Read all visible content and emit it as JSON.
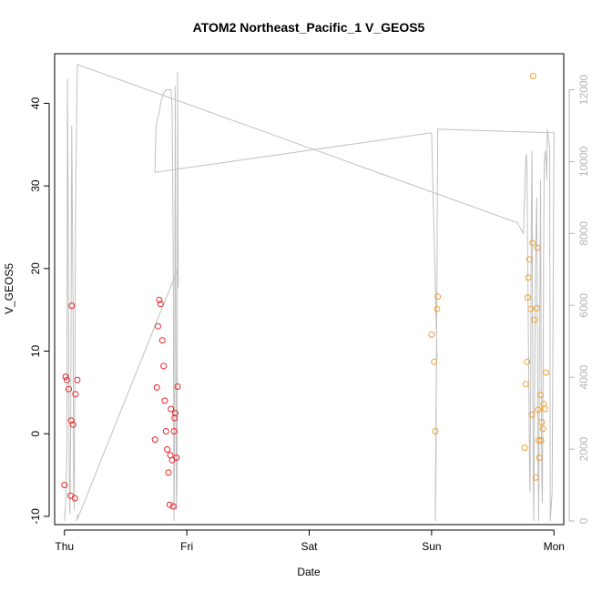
{
  "chart_data": {
    "type": "scatter",
    "title": "ATOM2 Northeast_Pacific_1 V_GEOS5",
    "xlabel": "Date",
    "ylabel": "V_GEOS5",
    "x_ticks": [
      "Thu",
      "Fri",
      "Sat",
      "Sun",
      "Mon"
    ],
    "y_left": {
      "ticks": [
        -10,
        0,
        10,
        20,
        30,
        40
      ],
      "range": [
        -11,
        46
      ]
    },
    "y_right": {
      "ticks": [
        0,
        2000,
        4000,
        6000,
        8000,
        10000,
        12000
      ],
      "range": [
        -100,
        13000
      ]
    },
    "x_range": [
      -0.08,
      4.08
    ],
    "colors": {
      "series1": "#e8242a",
      "series2": "#f0a030",
      "altitude": "#c0c0c0"
    },
    "series": [
      {
        "color_key": "series1",
        "points": [
          [
            0.0,
            -6.2
          ],
          [
            0.01,
            6.9
          ],
          [
            0.02,
            6.5
          ],
          [
            0.035,
            5.4
          ],
          [
            0.05,
            -7.5
          ],
          [
            0.055,
            1.6
          ],
          [
            0.06,
            15.5
          ],
          [
            0.07,
            1.1
          ],
          [
            0.085,
            -7.8
          ],
          [
            0.09,
            4.8
          ],
          [
            0.105,
            6.5
          ],
          [
            0.74,
            -0.7
          ],
          [
            0.755,
            5.6
          ],
          [
            0.765,
            13.0
          ],
          [
            0.775,
            16.2
          ],
          [
            0.785,
            15.7
          ],
          [
            0.8,
            11.3
          ],
          [
            0.81,
            8.2
          ],
          [
            0.82,
            4.0
          ],
          [
            0.83,
            0.3
          ],
          [
            0.84,
            -1.9
          ],
          [
            0.85,
            -4.7
          ],
          [
            0.86,
            -8.6
          ],
          [
            0.865,
            -2.6
          ],
          [
            0.87,
            3.0
          ],
          [
            0.88,
            -3.2
          ],
          [
            0.89,
            -8.8
          ],
          [
            0.895,
            0.3
          ],
          [
            0.9,
            1.9
          ],
          [
            0.905,
            2.5
          ],
          [
            0.915,
            -2.9
          ],
          [
            0.925,
            5.7
          ]
        ]
      },
      {
        "color_key": "series2",
        "points": [
          [
            3.0,
            12.0
          ],
          [
            3.02,
            8.7
          ],
          [
            3.03,
            0.3
          ],
          [
            3.045,
            15.1
          ],
          [
            3.05,
            16.6
          ],
          [
            3.76,
            -1.7
          ],
          [
            3.77,
            6.0
          ],
          [
            3.78,
            8.7
          ],
          [
            3.785,
            16.5
          ],
          [
            3.79,
            18.9
          ],
          [
            3.8,
            21.1
          ],
          [
            3.81,
            15.1
          ],
          [
            3.82,
            2.3
          ],
          [
            3.825,
            23.1
          ],
          [
            3.83,
            43.3
          ],
          [
            3.84,
            13.8
          ],
          [
            3.85,
            -5.3
          ],
          [
            3.86,
            15.2
          ],
          [
            3.865,
            22.5
          ],
          [
            3.87,
            2.9
          ],
          [
            3.875,
            -0.8
          ],
          [
            3.88,
            -2.9
          ],
          [
            3.89,
            4.7
          ],
          [
            3.895,
            -0.8
          ],
          [
            3.9,
            1.4
          ],
          [
            3.91,
            0.6
          ],
          [
            3.915,
            3.6
          ],
          [
            3.925,
            3.0
          ],
          [
            3.935,
            7.4
          ]
        ]
      }
    ],
    "altitude_line": [
      [
        0.0,
        0
      ],
      [
        0.01,
        500
      ],
      [
        0.02,
        2000
      ],
      [
        0.025,
        12300
      ],
      [
        0.03,
        9000
      ],
      [
        0.035,
        4000
      ],
      [
        0.04,
        1000
      ],
      [
        0.045,
        200
      ],
      [
        0.05,
        2000
      ],
      [
        0.06,
        11000
      ],
      [
        0.07,
        6000
      ],
      [
        0.075,
        1000
      ],
      [
        0.08,
        300
      ],
      [
        0.085,
        4000
      ],
      [
        0.09,
        8000
      ],
      [
        0.095,
        10000
      ],
      [
        0.105,
        12700
      ],
      [
        3.7,
        8300
      ],
      [
        3.75,
        8000
      ],
      [
        3.77,
        10100
      ],
      [
        3.775,
        10200
      ],
      [
        3.78,
        9600
      ],
      [
        3.79,
        5500
      ],
      [
        3.8,
        1500
      ],
      [
        3.805,
        800
      ],
      [
        3.81,
        4000
      ],
      [
        3.815,
        8500
      ],
      [
        3.82,
        10300
      ],
      [
        3.825,
        6000
      ],
      [
        3.83,
        1500
      ],
      [
        3.835,
        0
      ],
      [
        3.84,
        3000
      ],
      [
        3.85,
        7500
      ],
      [
        3.86,
        9000
      ],
      [
        3.865,
        5000
      ],
      [
        3.87,
        1500
      ],
      [
        3.875,
        0
      ],
      [
        3.88,
        3500
      ],
      [
        3.885,
        6500
      ],
      [
        3.89,
        9500
      ],
      [
        3.895,
        5000
      ],
      [
        3.9,
        1200
      ],
      [
        3.905,
        500
      ],
      [
        3.91,
        3500
      ],
      [
        3.915,
        7000
      ],
      [
        3.92,
        10000
      ],
      [
        3.93,
        10300
      ],
      [
        3.935,
        10000
      ],
      [
        3.94,
        9500
      ],
      [
        3.945,
        10900
      ],
      [
        3.95,
        10800
      ],
      [
        3.955,
        10600
      ],
      [
        3.96,
        10500
      ],
      [
        3.965,
        10400
      ],
      [
        3.97,
        0
      ],
      [
        3.985,
        800
      ],
      [
        4.0,
        10800
      ],
      [
        3.05,
        10900
      ],
      [
        3.035,
        1200
      ],
      [
        3.03,
        0
      ],
      [
        3.035,
        2500
      ],
      [
        3.04,
        5000
      ],
      [
        3.045,
        4500
      ],
      [
        3.0,
        10800
      ],
      [
        0.74,
        9700
      ],
      [
        0.745,
        10600
      ],
      [
        0.75,
        11000
      ],
      [
        0.76,
        11200
      ],
      [
        0.77,
        11300
      ],
      [
        0.78,
        11500
      ],
      [
        0.79,
        11700
      ],
      [
        0.8,
        11800
      ],
      [
        0.81,
        11900
      ],
      [
        0.82,
        11950
      ],
      [
        0.83,
        12000
      ],
      [
        0.84,
        12000
      ],
      [
        0.85,
        12000
      ],
      [
        0.86,
        12000
      ],
      [
        0.87,
        12000
      ],
      [
        0.88,
        11500
      ],
      [
        0.89,
        7000
      ],
      [
        0.895,
        0
      ],
      [
        0.9,
        1800
      ],
      [
        0.905,
        12100
      ],
      [
        0.91,
        6500
      ],
      [
        0.915,
        300
      ],
      [
        0.92,
        1200
      ],
      [
        0.925,
        12500
      ],
      [
        0.93,
        6500
      ],
      [
        0.925,
        7000
      ],
      [
        0.1,
        0
      ],
      [
        0.11,
        200
      ]
    ]
  }
}
